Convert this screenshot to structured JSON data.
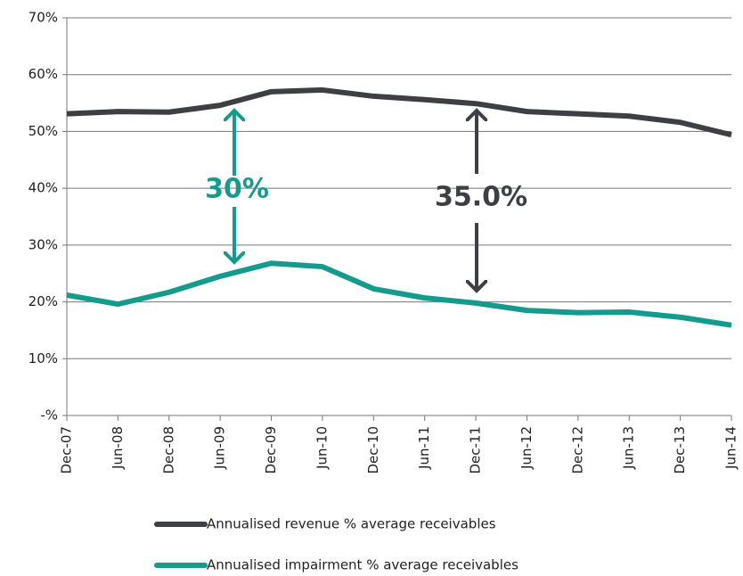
{
  "chart_data": {
    "type": "line",
    "categories": [
      "Dec-07",
      "Jun-08",
      "Dec-08",
      "Jun-09",
      "Dec-09",
      "Jun-10",
      "Dec-10",
      "Jun-11",
      "Dec-11",
      "Jun-12",
      "Dec-12",
      "Jun-13",
      "Dec-13",
      "Jun-14"
    ],
    "series": [
      {
        "name": "Annualised revenue % average receivables",
        "color": "#3d3f44",
        "values": [
          53.1,
          53.5,
          53.4,
          54.6,
          57.0,
          57.3,
          56.2,
          55.6,
          54.9,
          53.5,
          53.1,
          52.7,
          51.6,
          49.4
        ]
      },
      {
        "name": "Annualised impairment % average receivables",
        "color": "#159b8e",
        "values": [
          21.2,
          19.6,
          21.7,
          24.5,
          26.8,
          26.2,
          22.3,
          20.7,
          19.8,
          18.5,
          18.1,
          18.2,
          17.3,
          15.9
        ]
      }
    ],
    "ylim": [
      0,
      70
    ],
    "yticks": [
      {
        "value": 0,
        "label": "-%"
      },
      {
        "value": 10,
        "label": "10%"
      },
      {
        "value": 20,
        "label": "20%"
      },
      {
        "value": 30,
        "label": "30%"
      },
      {
        "value": 40,
        "label": "40%"
      },
      {
        "value": 50,
        "label": "50%"
      },
      {
        "value": 60,
        "label": "60%"
      },
      {
        "value": 70,
        "label": "70%"
      }
    ],
    "grid": true,
    "legend": "bottom",
    "annotations": [
      "30%",
      "35.0%"
    ]
  }
}
